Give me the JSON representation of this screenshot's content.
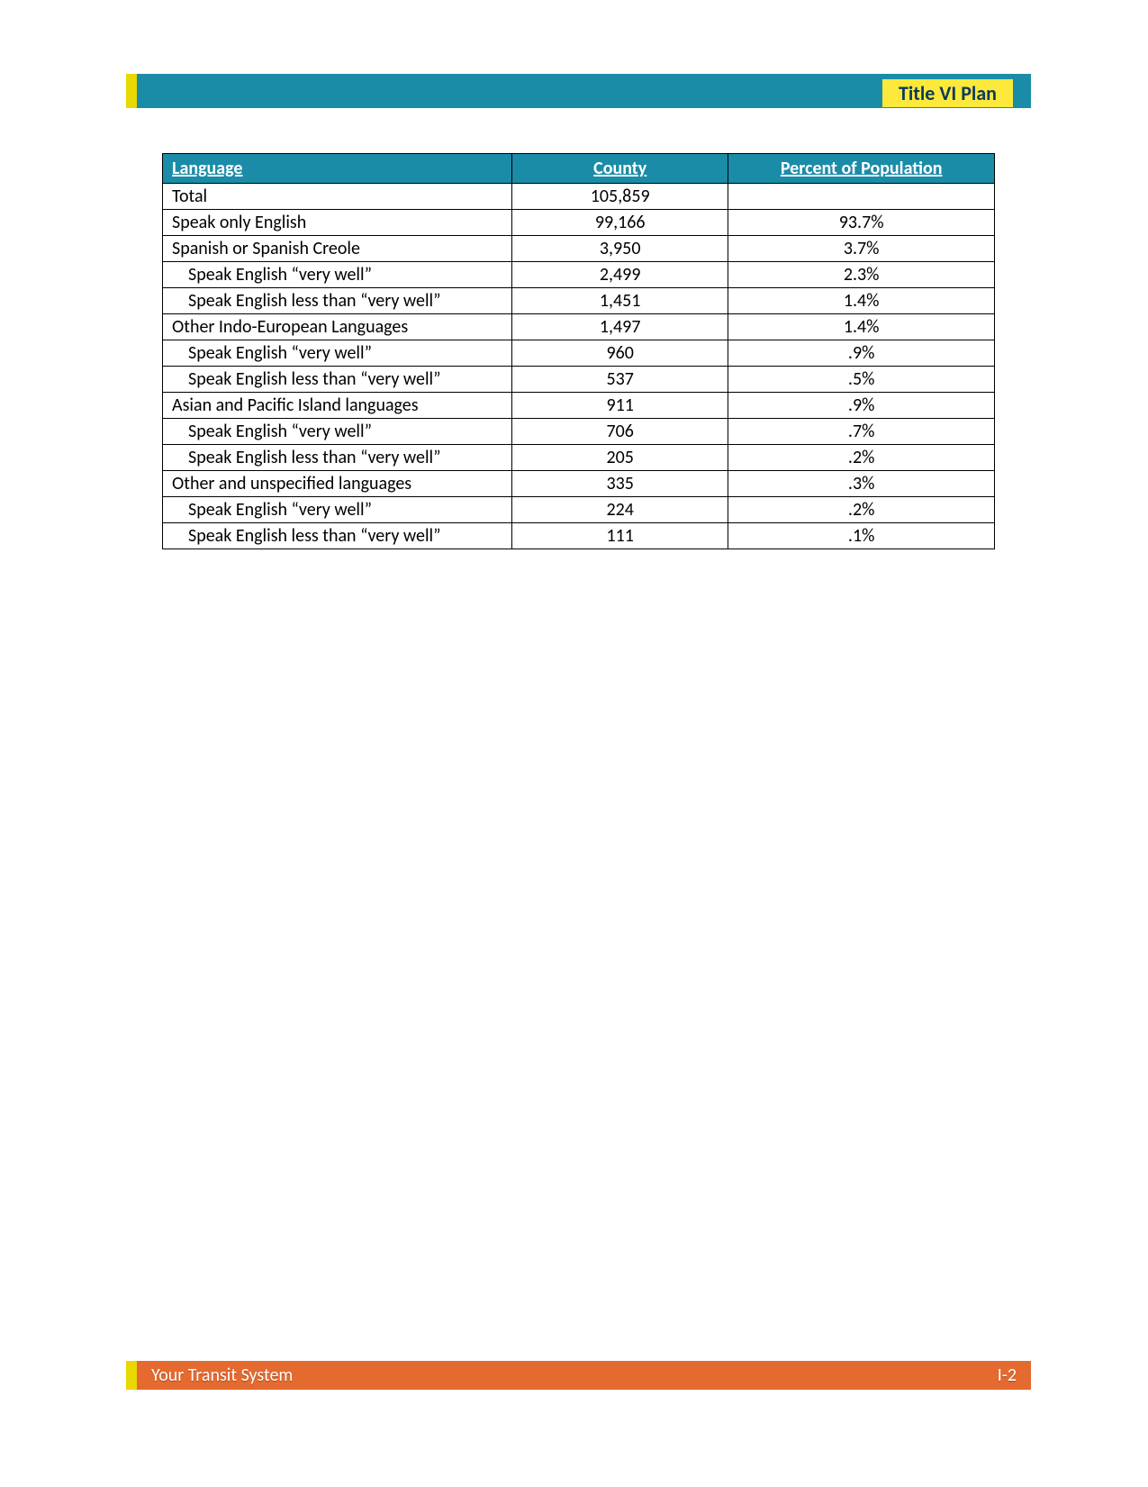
{
  "header": {
    "title": "Title VI Plan",
    "teal_color": "#1b8ca8",
    "yellow_badge_color": "#fde93c",
    "accent_yellow": "#e8d800",
    "title_text_color": "#0a3a5a"
  },
  "table": {
    "columns": [
      "Language",
      "County",
      "Percent of Population"
    ],
    "header_bg": "#1b8ca8",
    "header_text_color": "#ffffff",
    "border_color": "#000000",
    "rows": [
      {
        "language": "Total",
        "county": "105,859",
        "percent": "",
        "indent": false
      },
      {
        "language": "Speak only English",
        "county": "99,166",
        "percent": "93.7%",
        "indent": false
      },
      {
        "language": "Spanish or Spanish Creole",
        "county": "3,950",
        "percent": "3.7%",
        "indent": false
      },
      {
        "language": "Speak English “very well”",
        "county": "2,499",
        "percent": "2.3%",
        "indent": true
      },
      {
        "language": "Speak English less than “very well”",
        "county": "1,451",
        "percent": "1.4%",
        "indent": true
      },
      {
        "language": "Other Indo-European Languages",
        "county": "1,497",
        "percent": "1.4%",
        "indent": false
      },
      {
        "language": "Speak English “very well”",
        "county": "960",
        "percent": ".9%",
        "indent": true
      },
      {
        "language": "Speak English less than “very well”",
        "county": "537",
        "percent": ".5%",
        "indent": true
      },
      {
        "language": "Asian and Pacific Island languages",
        "county": "911",
        "percent": ".9%",
        "indent": false
      },
      {
        "language": "Speak English “very well”",
        "county": "706",
        "percent": ".7%",
        "indent": true
      },
      {
        "language": "Speak English less than “very well”",
        "county": "205",
        "percent": ".2%",
        "indent": true
      },
      {
        "language": "Other and unspecified languages",
        "county": "335",
        "percent": ".3%",
        "indent": false
      },
      {
        "language": "Speak English “very well”",
        "county": "224",
        "percent": ".2%",
        "indent": true
      },
      {
        "language": "Speak English less than “very well”",
        "county": "111",
        "percent": ".1%",
        "indent": true
      }
    ]
  },
  "footer": {
    "left_text": "Your Transit System",
    "right_text": "I-2",
    "orange_color": "#e56a2f",
    "accent_yellow": "#e8d800",
    "text_color": "#ffffff"
  }
}
